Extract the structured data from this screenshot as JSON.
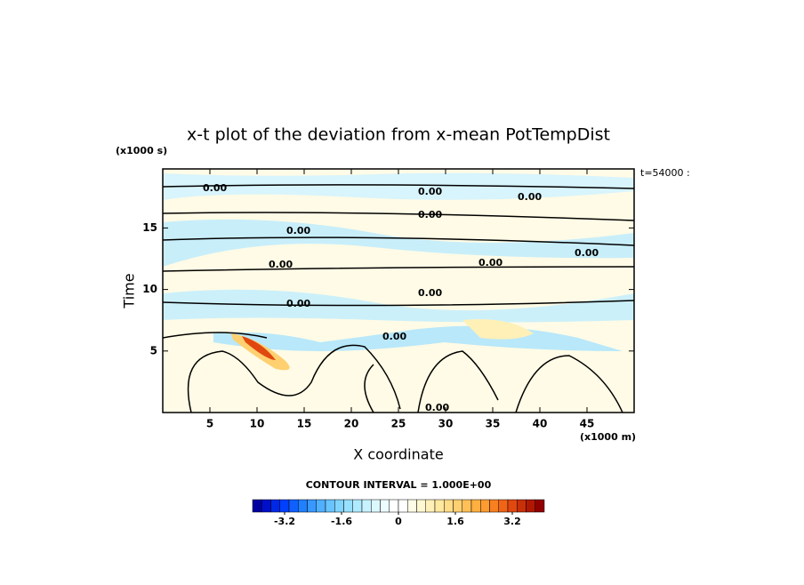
{
  "chart_data": {
    "type": "contour",
    "title": "x-t plot of the deviation from x-mean PotTempDist",
    "x_label": "X coordinate",
    "x_unit": "(x1000 m)",
    "y_label": "Time",
    "y_unit": "(x1000 s)",
    "time_stamp": "t=54000 :",
    "xlim": [
      0,
      50
    ],
    "xticks": [
      5,
      10,
      15,
      20,
      25,
      30,
      35,
      40,
      45
    ],
    "ylim": [
      0,
      19.8
    ],
    "yticks": [
      5,
      10,
      15
    ],
    "contour_interval": "CONTOUR INTERVAL = 1.000E+00",
    "contour_labels": [
      "0.00",
      "0.00",
      "0.00",
      "0.00",
      "0.00",
      "0.00",
      "0.00",
      "0.00",
      "0.00",
      "0.00",
      "0.00",
      "0.00"
    ],
    "colorbar": {
      "lim": [
        -4.1,
        4.1
      ],
      "ticks": [
        -3.2,
        -1.6,
        0,
        1.6,
        3.2
      ],
      "colors": [
        "#0000a0",
        "#0010c8",
        "#0028e6",
        "#0040ff",
        "#1060ff",
        "#2080ff",
        "#3898ff",
        "#50b0ff",
        "#68c4ff",
        "#80d4ff",
        "#98e0ff",
        "#b0eaff",
        "#c8f2ff",
        "#dcf8ff",
        "#ecfcff",
        "#ffffff",
        "#ffffff",
        "#fffce6",
        "#fff8d0",
        "#fff0b8",
        "#ffe8a0",
        "#ffdc88",
        "#ffd070",
        "#ffc058",
        "#ffb040",
        "#ff9c30",
        "#f88020",
        "#f06418",
        "#e04810",
        "#c83008",
        "#b01804",
        "#900000"
      ]
    }
  }
}
